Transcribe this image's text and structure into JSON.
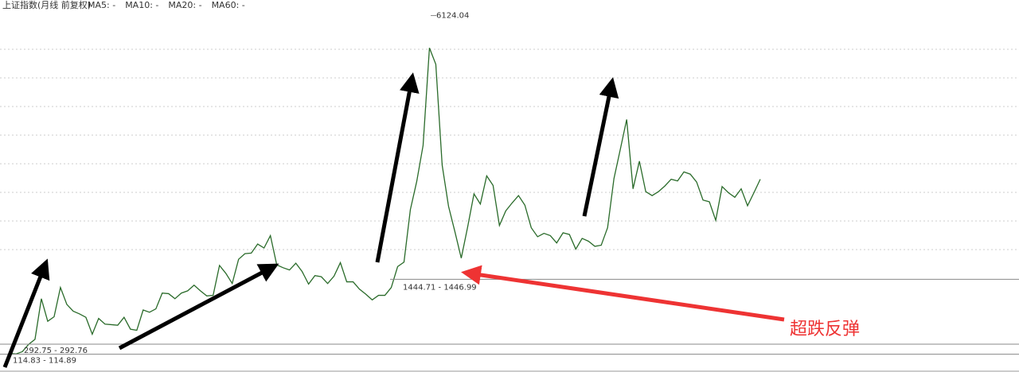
{
  "chart_data": {
    "type": "line",
    "title": "上证指数(月线 前复权)",
    "legend": [
      {
        "label": "MA5: -",
        "color": "#555555"
      },
      {
        "label": "MA10: -",
        "color": "#1e8fd0"
      },
      {
        "label": "MA20: -",
        "color": "#a020a0"
      },
      {
        "label": "MA60: -",
        "color": "#999999"
      }
    ],
    "ylim": [
      -200,
      6400
    ],
    "series": [
      {
        "color": "#2a6b2a",
        "values": [
          130,
          120,
          160,
          290,
          380,
          1100,
          700,
          780,
          1300,
          1000,
          880,
          830,
          770,
          470,
          750,
          650,
          640,
          630,
          770,
          560,
          540,
          900,
          860,
          920,
          1200,
          1190,
          1100,
          1200,
          1240,
          1340,
          1240,
          1150,
          1160,
          1690,
          1550,
          1370,
          1800,
          1900,
          1910,
          2070,
          2000,
          2220,
          1700,
          1650,
          1610,
          1730,
          1580,
          1360,
          1510,
          1490,
          1370,
          1500,
          1740,
          1400,
          1400,
          1270,
          1180,
          1080,
          1160,
          1160,
          1300,
          1670,
          1750,
          2680,
          3180,
          3820,
          5550,
          5260,
          3470,
          2740,
          2290,
          1820,
          2370,
          2960,
          2780,
          3280,
          3110,
          2400,
          2660,
          2800,
          2930,
          2760,
          2360,
          2200,
          2260,
          2220,
          2090,
          2270,
          2240,
          1980,
          2170,
          2120,
          2030,
          2050,
          2360,
          3230,
          3750,
          4280,
          3050,
          3540,
          3000,
          2930,
          3000,
          3100,
          3220,
          3190,
          3350,
          3310,
          3170,
          2850,
          2820,
          2490,
          3090,
          2980,
          2900,
          3050,
          2750,
          2980,
          3220
        ]
      }
    ],
    "annotations": [
      {
        "text": "6124.04",
        "value": 6124.04
      },
      {
        "text": "1444.71 - 1446.99",
        "value": 1444.71
      },
      {
        "text": "292.75 - 292.76",
        "value": 292.75
      },
      {
        "text": "114.83 - 114.89",
        "value": 114.83
      }
    ],
    "callout": "超跌反弹"
  }
}
